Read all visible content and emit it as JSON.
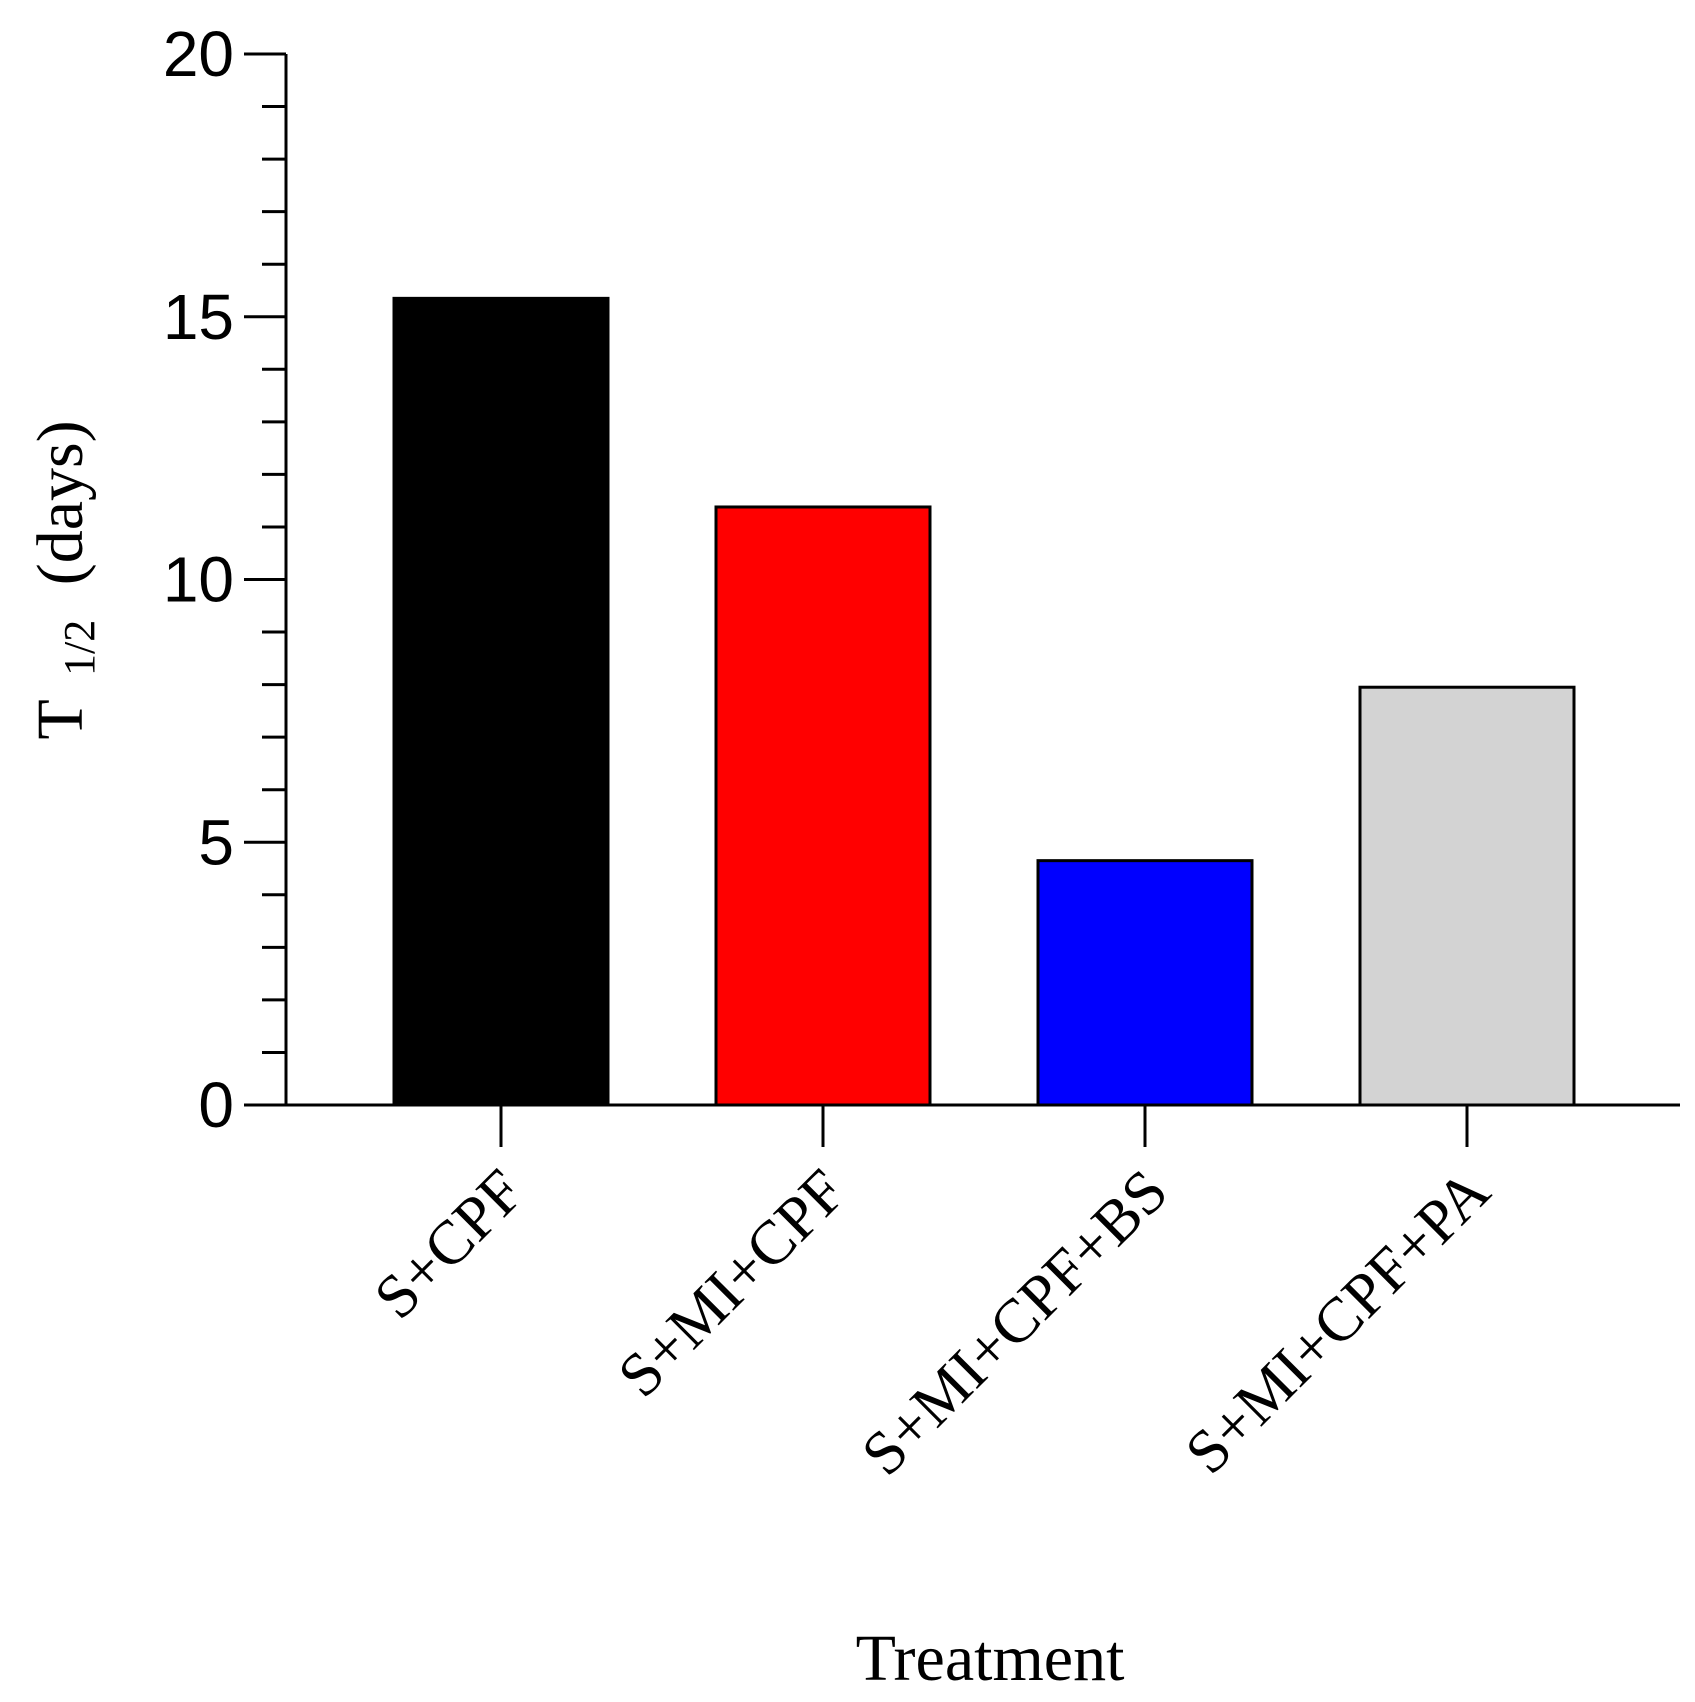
{
  "chart_data": {
    "type": "bar",
    "title": "",
    "xlabel": "Treatment",
    "ylabel": {
      "main": "T",
      "subscript": "1/2",
      "suffix": "(days)"
    },
    "categories": [
      "S+CPF",
      "S+MI+CPF",
      "S+MI+CPF+BS",
      "S+MI+CPF+PA"
    ],
    "values": [
      15.35,
      11.38,
      4.65,
      7.95
    ],
    "colors": [
      "#000000",
      "#ff0000",
      "#0000ff",
      "#d3d3d3"
    ],
    "ylim": [
      0,
      20
    ],
    "yticks": [
      0,
      5,
      10,
      15,
      20
    ],
    "ytick_labels": [
      "0",
      "5",
      "10",
      "15",
      "20"
    ],
    "minor_tick_step": 1,
    "grid": false,
    "legend": "none"
  }
}
